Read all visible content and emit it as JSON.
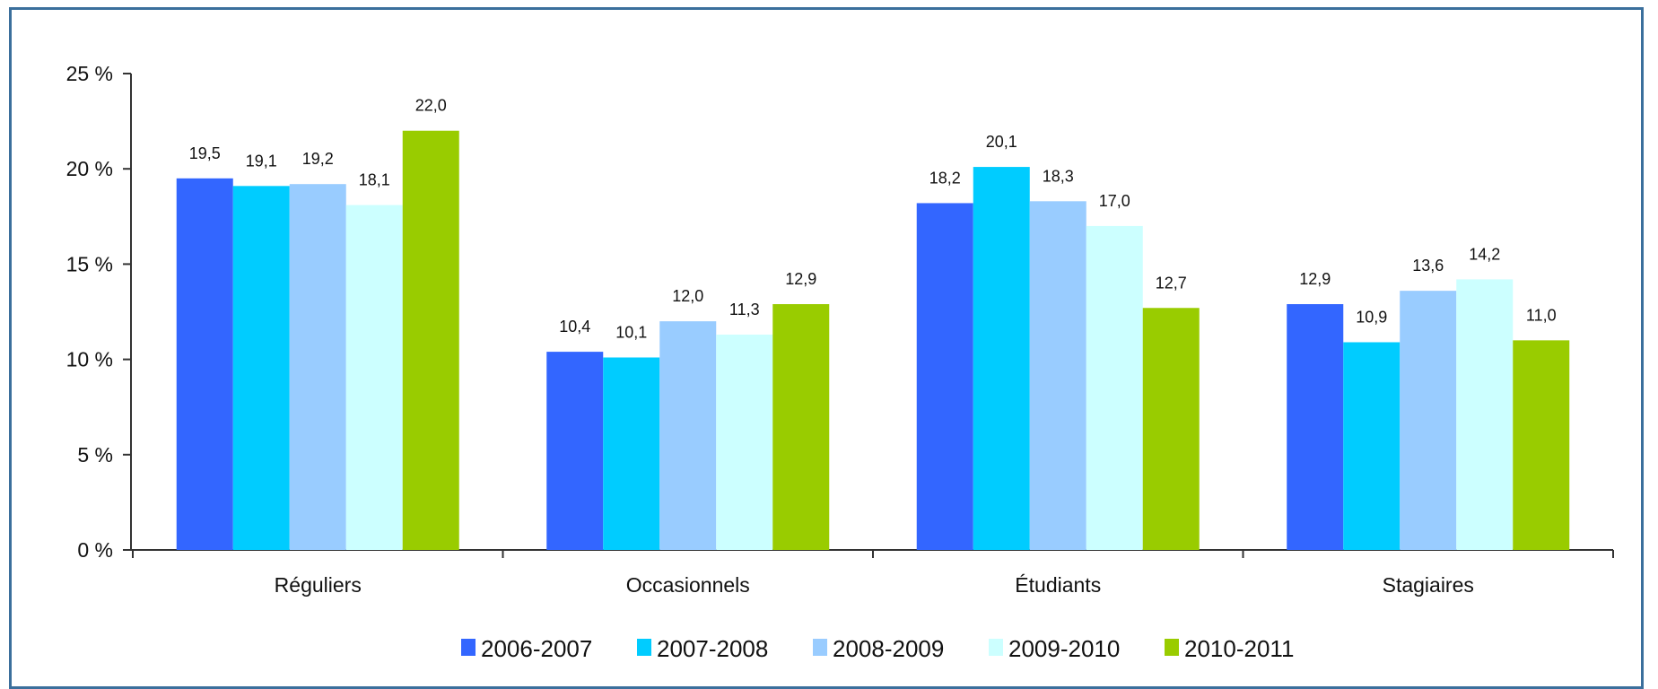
{
  "chart_data": {
    "type": "bar",
    "categories": [
      "Réguliers",
      "Occasionnels",
      "Étudiants",
      "Stagiaires"
    ],
    "series": [
      {
        "name": "2006-2007",
        "color": "#3366ff",
        "values": [
          19.5,
          10.4,
          18.2,
          12.9
        ],
        "labels": [
          "19,5",
          "10,4",
          "18,2",
          "12,9"
        ]
      },
      {
        "name": "2007-2008",
        "color": "#00ccff",
        "values": [
          19.1,
          10.1,
          20.1,
          10.9
        ],
        "labels": [
          "19,1",
          "10,1",
          "20,1",
          "10,9"
        ]
      },
      {
        "name": "2008-2009",
        "color": "#99ccff",
        "values": [
          19.2,
          12.0,
          18.3,
          13.6
        ],
        "labels": [
          "19,2",
          "12,0",
          "18,3",
          "13,6"
        ]
      },
      {
        "name": "2009-2010",
        "color": "#ccffff",
        "values": [
          18.1,
          11.3,
          17.0,
          14.2
        ],
        "labels": [
          "18,1",
          "11,3",
          "17,0",
          "14,2"
        ]
      },
      {
        "name": "2010-2011",
        "color": "#99cc00",
        "values": [
          22.0,
          12.9,
          12.7,
          11.0
        ],
        "labels": [
          "22,0",
          "12,9",
          "12,7",
          "11,0"
        ]
      }
    ],
    "ylim": [
      0,
      25
    ],
    "yticks": [
      0,
      5,
      10,
      15,
      20,
      25
    ],
    "ytick_labels": [
      "0 %",
      "5 %",
      "10 %",
      "15 %",
      "20 %",
      "25 %"
    ],
    "title": "",
    "xlabel": "",
    "ylabel": "",
    "grid": false,
    "legend_position": "bottom"
  }
}
